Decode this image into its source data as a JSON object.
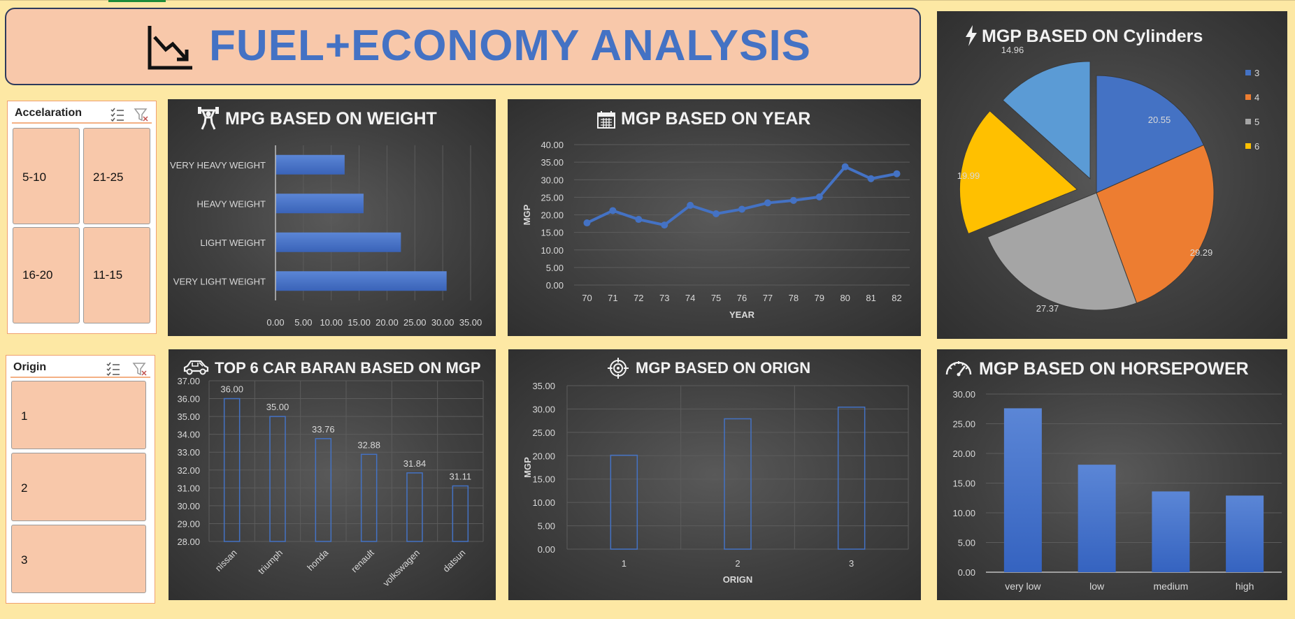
{
  "colors": {
    "background": "#fde8a4",
    "banner_fill": "#f8c8aa",
    "title_blue": "#4472c4",
    "slicer_button": "#f8c8aa",
    "panel_dark": "#404040",
    "bar_blue": "#4472c4",
    "pie_3": "#4472c4",
    "pie_4": "#ed7d31",
    "pie_5": "#a5a5a5",
    "pie_6": "#ffc000",
    "pie_extra": "#5b9bd5"
  },
  "banner": {
    "title": "FUEL+ECONOMY ANALYSIS",
    "icon": "chart-down-icon"
  },
  "slicers": [
    {
      "title": "Accelaration",
      "items": [
        "5-10",
        "21-25",
        "16-20",
        "11-15"
      ]
    },
    {
      "title": "Origin",
      "items": [
        "1",
        "2",
        "3"
      ]
    }
  ],
  "panels": {
    "weight": {
      "title": "MPG BASED ON WEIGHT",
      "icon": "weightlifter-icon"
    },
    "year": {
      "title": "MGP BASED ON YEAR",
      "icon": "calendar-icon"
    },
    "cylinders": {
      "title": "MGP BASED ON Cylinders",
      "icon": "lightning-icon"
    },
    "brand": {
      "title": "TOP 6 CAR BARAN BASED ON MGP",
      "icon": "car-icon"
    },
    "origin": {
      "title": "MGP BASED ON ORIGN",
      "icon": "target-icon"
    },
    "horsepower": {
      "title": "MGP BASED ON HORSEPOWER",
      "icon": "speedometer-icon"
    }
  },
  "chart_data": [
    {
      "id": "weight",
      "type": "bar",
      "orientation": "horizontal",
      "title": "MPG BASED ON WEIGHT",
      "categories": [
        "VERY HEAVY WEIGHT",
        "HEAVY WEIGHT",
        "LIGHT WEIGHT",
        "VERY LIGHT WEIGHT"
      ],
      "values": [
        12.4,
        15.8,
        22.5,
        30.7
      ],
      "xlim": [
        0,
        35
      ],
      "xticks": [
        "0.00",
        "5.00",
        "10.00",
        "15.00",
        "20.00",
        "25.00",
        "30.00",
        "35.00"
      ],
      "grid": true
    },
    {
      "id": "year",
      "type": "line",
      "title": "MGP BASED ON YEAR",
      "x": [
        "70",
        "71",
        "72",
        "73",
        "74",
        "75",
        "76",
        "77",
        "78",
        "79",
        "80",
        "81",
        "82"
      ],
      "values": [
        17.7,
        21.2,
        18.7,
        17.1,
        22.7,
        20.3,
        21.6,
        23.4,
        24.1,
        25.1,
        33.7,
        30.3,
        31.7
      ],
      "ylim": [
        0,
        40
      ],
      "yticks": [
        "0.00",
        "5.00",
        "10.00",
        "15.00",
        "20.00",
        "25.00",
        "30.00",
        "35.00",
        "40.00"
      ],
      "xlabel": "YEAR",
      "ylabel": "MGP",
      "grid": true
    },
    {
      "id": "cylinders",
      "type": "pie",
      "title": "MGP BASED ON Cylinders",
      "labels": [
        "3",
        "4",
        "5",
        "6",
        ""
      ],
      "values": [
        20.55,
        29.29,
        27.37,
        19.99,
        14.96
      ],
      "value_labels": [
        "20.55",
        "29.29",
        "27.37",
        "19.99",
        "14.96"
      ],
      "legend": [
        "3",
        "4",
        "5",
        "6"
      ],
      "legend_position": "right"
    },
    {
      "id": "brand",
      "type": "bar",
      "title": "TOP 6 CAR BARAN BASED ON MGP",
      "categories": [
        "nissan",
        "triumph",
        "honda",
        "renault",
        "volkswagen",
        "datsun"
      ],
      "values": [
        36.0,
        35.0,
        33.76,
        32.88,
        31.84,
        31.11
      ],
      "value_labels": [
        "36.00",
        "35.00",
        "33.76",
        "32.88",
        "31.84",
        "31.11"
      ],
      "ylim": [
        28,
        37
      ],
      "yticks": [
        "28.00",
        "29.00",
        "30.00",
        "31.00",
        "32.00",
        "33.00",
        "34.00",
        "35.00",
        "36.00",
        "37.00"
      ],
      "style": "outline",
      "grid": true
    },
    {
      "id": "origin",
      "type": "bar",
      "title": "MGP BASED ON ORIGN",
      "categories": [
        "1",
        "2",
        "3"
      ],
      "values": [
        20.1,
        27.9,
        30.4
      ],
      "ylim": [
        0,
        35
      ],
      "yticks": [
        "0.00",
        "5.00",
        "10.00",
        "15.00",
        "20.00",
        "25.00",
        "30.00",
        "35.00"
      ],
      "xlabel": "ORIGN",
      "ylabel": "MGP",
      "style": "outline",
      "grid": true
    },
    {
      "id": "horsepower",
      "type": "bar",
      "title": "MGP BASED ON HORSEPOWER",
      "categories": [
        "very low",
        "low",
        "medium",
        "high"
      ],
      "values": [
        27.6,
        18.1,
        13.6,
        12.9
      ],
      "ylim": [
        0,
        30
      ],
      "yticks": [
        "0.00",
        "5.00",
        "10.00",
        "15.00",
        "20.00",
        "25.00",
        "30.00"
      ],
      "grid": true
    }
  ]
}
